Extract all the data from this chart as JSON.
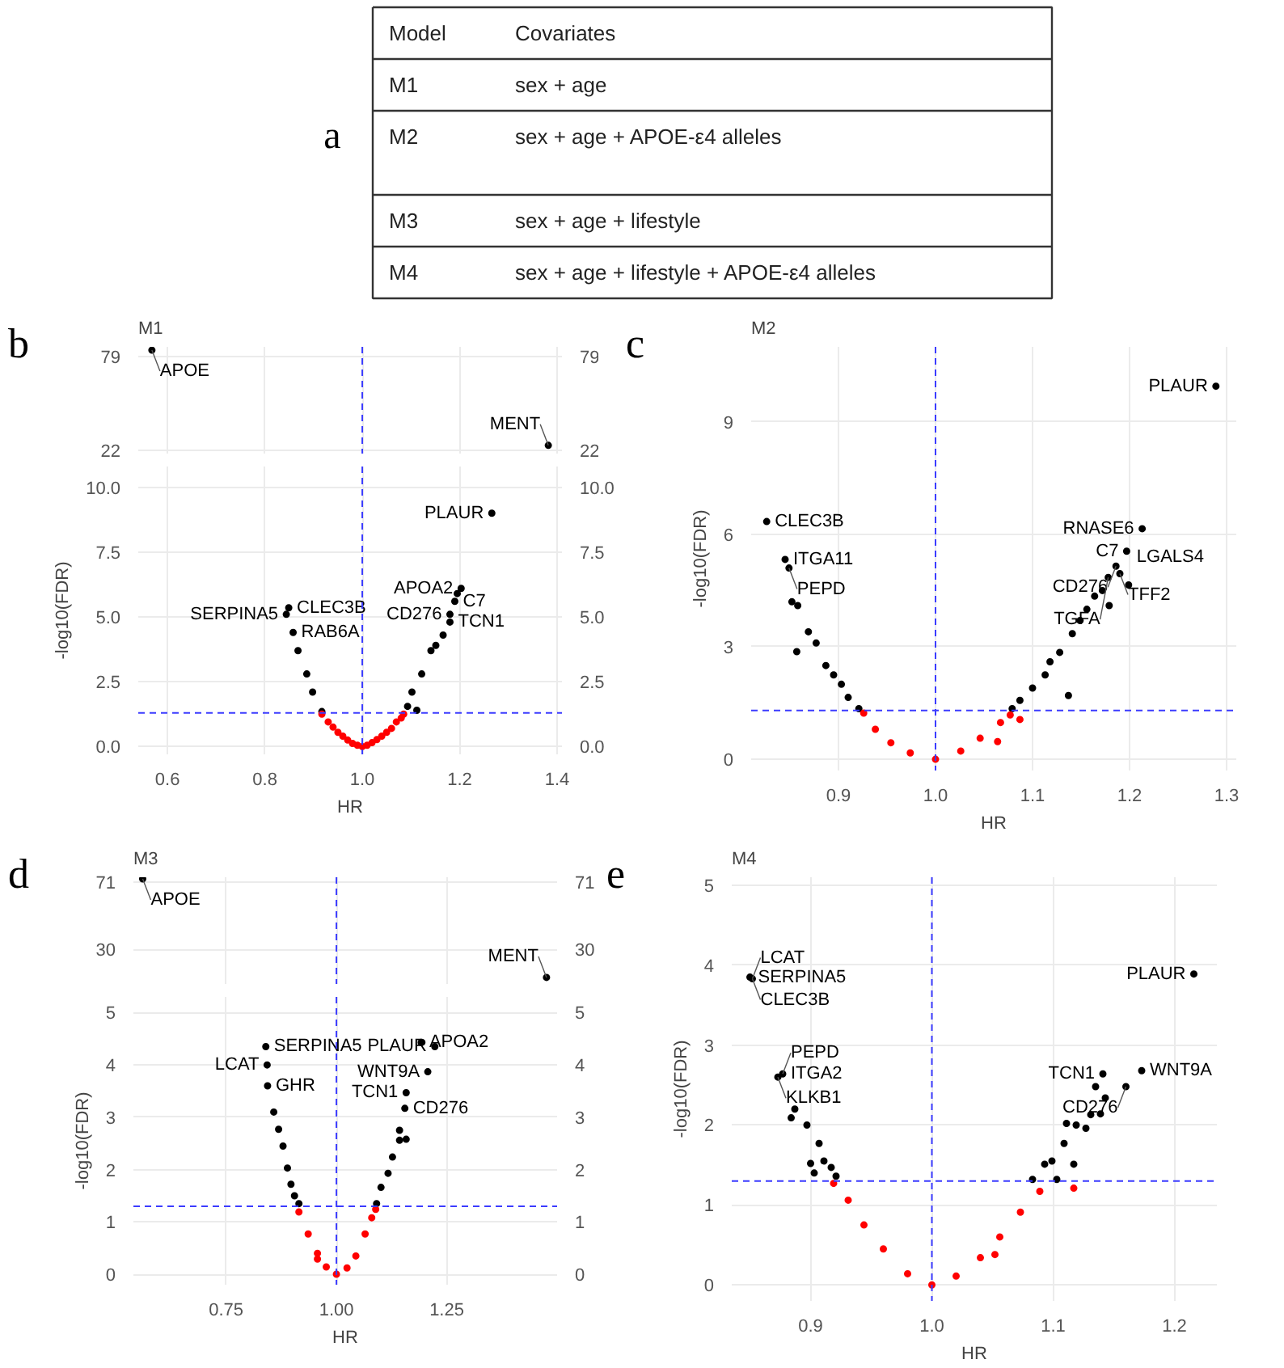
{
  "chart_data": [
    {
      "type": "other",
      "annotations": [
        "a",
        "Model",
        "Covariates",
        "M1",
        "sex + age",
        "M2",
        "sex + age + APOE-ε4 alleles",
        "M3",
        "sex + age + lifestyle",
        "M4",
        "sex + age + lifestyle + APOE-ε4 alleles"
      ]
    },
    {
      "type": "scatter",
      "title": "M1",
      "grid": true,
      "marker": "circle",
      "tick_labels": "y",
      "xlim": [
        0.54,
        1.41
      ],
      "xticks": [
        0.6,
        0.8,
        1.0,
        1.2,
        1.4
      ],
      "ylim": [
        20,
        85
      ],
      "yticks": [
        22,
        79
      ],
      "y2lim": [
        20,
        85
      ],
      "y2ticks": [
        22,
        79
      ],
      "series": [
        {
          "color": "#000000",
          "x": [
            0.568,
            1.382
          ],
          "values": [
            83,
            25
          ]
        }
      ],
      "ref_lines": [
        {
          "axis": "x",
          "value": 1,
          "color": "#3b3bff",
          "line_style": "dashed"
        }
      ],
      "annotations": [
        "b",
        {
          "text": "APOE",
          "x": 0.568,
          "y": 83
        },
        {
          "text": "MENT",
          "x": 1.382,
          "y": 25
        }
      ]
    },
    {
      "type": "scatter",
      "xlabel": "HR",
      "ylabel": "-log10(FDR)",
      "grid": true,
      "marker": "circle",
      "xlim": [
        0.54,
        1.41
      ],
      "xticks": [
        0.6,
        0.8,
        {
          "value": 1.0,
          "label": "1.0"
        },
        1.2,
        1.4
      ],
      "ylim": [
        -0.3,
        10.8
      ],
      "yticks": [
        {
          "value": 0,
          "label": "0.0"
        },
        {
          "value": 2.5,
          "label": "2.5"
        },
        {
          "value": 5,
          "label": "5.0"
        },
        {
          "value": 7.5,
          "label": "7.5"
        },
        {
          "value": 10,
          "label": "10.0"
        }
      ],
      "y2lim": [
        -0.3,
        10.8
      ],
      "y2ticks": [
        {
          "value": 0,
          "label": "0.0"
        },
        {
          "value": 2.5,
          "label": "2.5"
        },
        {
          "value": 5,
          "label": "5.0"
        },
        {
          "value": 7.5,
          "label": "7.5"
        },
        {
          "value": 10,
          "label": "10.0"
        }
      ],
      "series": [
        {
          "color": "#000000",
          "x": [
            0.917,
            0.898,
            0.886,
            0.868,
            0.858,
            0.844,
            0.849,
            1.093,
            1.102,
            1.112,
            1.122,
            1.141,
            1.151,
            1.166,
            1.18,
            1.18,
            1.19,
            1.195,
            1.203,
            1.266
          ],
          "values": [
            1.35,
            2.1,
            2.8,
            3.7,
            4.4,
            5.1,
            5.35,
            1.55,
            2.1,
            1.4,
            2.8,
            3.7,
            3.9,
            4.3,
            5.1,
            4.8,
            5.6,
            5.9,
            6.1,
            9.0
          ]
        },
        {
          "color": "#ff0000",
          "x": [
            0.917,
            0.93,
            0.94,
            0.95,
            0.96,
            0.97,
            0.98,
            0.99,
            1.0,
            1.01,
            1.02,
            1.03,
            1.04,
            1.05,
            1.06,
            1.07,
            1.08,
            1.085
          ],
          "values": [
            1.25,
            0.95,
            0.75,
            0.55,
            0.4,
            0.25,
            0.12,
            0.05,
            0,
            0.05,
            0.15,
            0.27,
            0.4,
            0.55,
            0.7,
            0.95,
            1.1,
            1.25
          ]
        }
      ],
      "ref_lines": [
        {
          "axis": "x",
          "value": 1,
          "color": "#3b3bff",
          "line_style": "dashed"
        },
        {
          "axis": "y",
          "value": 1.3,
          "color": "#3b3bff",
          "line_style": "dashed"
        }
      ],
      "annotations": [
        {
          "text": "PLAUR",
          "x": 1.266,
          "y": 9.0
        },
        {
          "text": "APOA2",
          "x": 1.203,
          "y": 6.1
        },
        {
          "text": "C7",
          "x": 1.19,
          "y": 5.6
        },
        {
          "text": "CD276",
          "x": 1.18,
          "y": 5.1
        },
        {
          "text": "TCN1",
          "x": 1.18,
          "y": 4.8
        },
        {
          "text": "CLEC3B",
          "x": 0.849,
          "y": 5.35
        },
        {
          "text": "SERPINA5",
          "x": 0.844,
          "y": 5.1
        },
        {
          "text": "RAB6A",
          "x": 0.858,
          "y": 4.4
        }
      ]
    },
    {
      "type": "scatter",
      "title": "M2",
      "xlabel": "HR",
      "ylabel": "-log10(FDR)",
      "grid": true,
      "marker": "circle",
      "xlim": [
        0.81,
        1.31
      ],
      "xticks": [
        0.9,
        {
          "value": 1.0,
          "label": "1.0"
        },
        1.1,
        1.2,
        1.3
      ],
      "ylim": [
        -0.3,
        11
      ],
      "yticks": [
        0,
        3,
        6,
        9
      ],
      "series": [
        {
          "color": "#000000",
          "x": [
            1.289,
            0.826,
            0.845,
            0.849,
            0.852,
            0.858,
            0.857,
            0.869,
            0.877,
            0.887,
            0.895,
            0.903,
            0.91,
            0.921,
            1.079,
            1.087,
            1.1,
            1.113,
            1.118,
            1.128,
            1.137,
            1.141,
            1.149,
            1.156,
            1.164,
            1.172,
            1.179,
            1.178,
            1.186,
            1.19,
            1.197,
            1.199,
            1.213
          ],
          "values": [
            9.95,
            6.34,
            5.33,
            5.1,
            4.2,
            4.1,
            2.87,
            3.4,
            3.1,
            2.5,
            2.25,
            2.0,
            1.65,
            1.35,
            1.35,
            1.57,
            1.9,
            2.25,
            2.6,
            2.85,
            1.7,
            3.35,
            3.7,
            4.0,
            4.35,
            4.5,
            4.1,
            4.85,
            5.15,
            4.95,
            5.55,
            4.65,
            6.15
          ]
        },
        {
          "color": "#ff0000",
          "x": [
            0.926,
            0.938,
            0.954,
            0.974,
            1.0,
            1.026,
            1.046,
            1.064,
            1.067,
            1.077,
            1.087
          ],
          "values": [
            1.23,
            0.8,
            0.44,
            0.17,
            0,
            0.22,
            0.56,
            0.47,
            0.98,
            1.18,
            1.06
          ]
        }
      ],
      "ref_lines": [
        {
          "axis": "x",
          "value": 1,
          "color": "#3b3bff",
          "line_style": "dashed"
        },
        {
          "axis": "y",
          "value": 1.3,
          "color": "#3b3bff",
          "line_style": "dashed"
        }
      ],
      "annotations": [
        "c",
        {
          "text": "PLAUR",
          "x": 1.289,
          "y": 9.95
        },
        {
          "text": "CLEC3B",
          "x": 0.826,
          "y": 6.34
        },
        {
          "text": "ITGA11",
          "x": 0.845,
          "y": 5.33
        },
        {
          "text": "PEPD",
          "x": 0.849,
          "y": 5.1
        },
        {
          "text": "RNASE6",
          "x": 1.213,
          "y": 6.15
        },
        {
          "text": "C7",
          "x": 1.197,
          "y": 5.55
        },
        {
          "text": "LGALS4",
          "x": 1.199,
          "y": 5.4
        },
        {
          "text": "CD276",
          "x": 1.186,
          "y": 5.15
        },
        {
          "text": "TFF2",
          "x": 1.19,
          "y": 4.95
        },
        {
          "text": "TGFA",
          "x": 1.178,
          "y": 4.85
        }
      ]
    },
    {
      "type": "scatter",
      "title": "M3",
      "grid": true,
      "marker": "circle",
      "tick_labels": "y",
      "xlim": [
        0.54,
        1.5
      ],
      "xticks": [
        0.75,
        1.0,
        1.25
      ],
      "ylim": [
        9,
        74
      ],
      "yticks": [
        30,
        71
      ],
      "y2lim": [
        9,
        74
      ],
      "y2ticks": [
        30,
        71
      ],
      "series": [
        {
          "color": "#000000",
          "x": [
            0.561,
            1.476
          ],
          "values": [
            73,
            13
          ]
        }
      ],
      "ref_lines": [
        {
          "axis": "x",
          "value": 1,
          "color": "#3b3bff",
          "line_style": "dashed"
        }
      ],
      "annotations": [
        "d",
        {
          "text": "APOE",
          "x": 0.561,
          "y": 73
        },
        {
          "text": "MENT",
          "x": 1.476,
          "y": 13
        }
      ]
    },
    {
      "type": "scatter",
      "xlabel": "HR",
      "ylabel": "-log10(FDR)",
      "grid": true,
      "marker": "circle",
      "xlim": [
        0.54,
        1.5
      ],
      "xticks": [
        {
          "value": 0.75,
          "label": "0.75"
        },
        {
          "value": 1.0,
          "label": "1.00"
        },
        {
          "value": 1.25,
          "label": "1.25"
        }
      ],
      "ylim": [
        -0.2,
        5.3
      ],
      "yticks": [
        0,
        1,
        2,
        3,
        4,
        5
      ],
      "y2lim": [
        -0.2,
        5.3
      ],
      "y2ticks": [
        0,
        1,
        2,
        3,
        4,
        5
      ],
      "series": [
        {
          "color": "#000000",
          "x": [
            0.84,
            0.843,
            0.844,
            0.858,
            0.869,
            0.879,
            0.889,
            0.897,
            0.905,
            0.915,
            1.091,
            1.101,
            1.117,
            1.127,
            1.143,
            1.143,
            1.158,
            1.155,
            1.158,
            1.207,
            1.192,
            1.223
          ],
          "values": [
            4.35,
            4.0,
            3.6,
            3.1,
            2.77,
            2.45,
            2.03,
            1.72,
            1.5,
            1.35,
            1.35,
            1.66,
            1.93,
            2.24,
            2.56,
            2.75,
            2.58,
            3.17,
            3.47,
            3.87,
            4.43,
            4.35
          ]
        },
        {
          "color": "#ff0000",
          "x": [
            0.915,
            0.936,
            0.957,
            0.957,
            0.977,
            1.0,
            1.024,
            1.044,
            1.065,
            1.08,
            1.089
          ],
          "values": [
            1.19,
            0.77,
            0.4,
            0.29,
            0.14,
            0,
            0.12,
            0.35,
            0.77,
            1.08,
            1.24
          ]
        }
      ],
      "ref_lines": [
        {
          "axis": "x",
          "value": 1,
          "color": "#3b3bff",
          "line_style": "dashed"
        },
        {
          "axis": "y",
          "value": 1.3,
          "color": "#3b3bff",
          "line_style": "dashed"
        }
      ],
      "annotations": [
        {
          "text": "SERPINA5",
          "x": 0.84,
          "y": 4.35
        },
        {
          "text": "LCAT",
          "x": 0.843,
          "y": 4.0
        },
        {
          "text": "GHR",
          "x": 0.844,
          "y": 3.6
        },
        {
          "text": "APOA2",
          "x": 1.192,
          "y": 4.43
        },
        {
          "text": "PLAUR",
          "x": 1.223,
          "y": 4.35
        },
        {
          "text": "WNT9A",
          "x": 1.207,
          "y": 3.87
        },
        {
          "text": "TCN1",
          "x": 1.158,
          "y": 3.47
        },
        {
          "text": "CD276",
          "x": 1.155,
          "y": 3.17
        }
      ]
    },
    {
      "type": "scatter",
      "title": "M4",
      "xlabel": "HR",
      "ylabel": "-log10(FDR)",
      "grid": true,
      "marker": "circle",
      "xlim": [
        0.835,
        1.235
      ],
      "xticks": [
        0.9,
        {
          "value": 1.0,
          "label": "1.0"
        },
        1.1,
        1.2
      ],
      "ylim": [
        -0.2,
        5.1
      ],
      "yticks": [
        0,
        1,
        2,
        3,
        4,
        5
      ],
      "series": [
        {
          "color": "#000000",
          "x": [
            0.85,
            0.852,
            0.877,
            0.873,
            0.884,
            0.887,
            0.897,
            0.9,
            0.903,
            0.907,
            0.911,
            0.917,
            0.921,
            1.083,
            1.093,
            1.099,
            1.103,
            1.109,
            1.111,
            1.117,
            1.119,
            1.127,
            1.131,
            1.139,
            1.135,
            1.141,
            1.143,
            1.16,
            1.173,
            1.216
          ],
          "values": [
            3.85,
            3.83,
            2.64,
            2.6,
            2.09,
            2.2,
            2.0,
            1.52,
            1.4,
            1.77,
            1.55,
            1.47,
            1.36,
            1.32,
            1.51,
            1.55,
            1.32,
            1.77,
            2.02,
            1.51,
            2.0,
            1.96,
            2.13,
            2.14,
            2.48,
            2.64,
            2.34,
            2.48,
            2.68,
            3.89
          ]
        },
        {
          "color": "#ff0000",
          "x": [
            0.919,
            0.931,
            0.944,
            0.96,
            0.98,
            1.0,
            1.02,
            1.04,
            1.052,
            1.056,
            1.073,
            1.089,
            1.117
          ],
          "values": [
            1.27,
            1.06,
            0.75,
            0.45,
            0.14,
            0,
            0.11,
            0.34,
            0.38,
            0.6,
            0.91,
            1.17,
            1.21
          ]
        }
      ],
      "ref_lines": [
        {
          "axis": "x",
          "value": 1,
          "color": "#3b3bff",
          "line_style": "dashed"
        },
        {
          "axis": "y",
          "value": 1.3,
          "color": "#3b3bff",
          "line_style": "dashed"
        }
      ],
      "annotations": [
        "e",
        {
          "text": "SERPINA5",
          "x": 0.85,
          "y": 3.85
        },
        {
          "text": "LCAT",
          "x": 0.852,
          "y": 3.83
        },
        {
          "text": "CLEC3B",
          "x": 0.852,
          "y": 3.83
        },
        {
          "text": "ITGA2",
          "x": 0.877,
          "y": 2.64
        },
        {
          "text": "KLKB1",
          "x": 0.873,
          "y": 2.6
        },
        {
          "text": "PEPD",
          "x": 0.877,
          "y": 2.64
        },
        {
          "text": "PLAUR",
          "x": 1.216,
          "y": 3.89
        },
        {
          "text": "TCN1",
          "x": 1.141,
          "y": 2.64
        },
        {
          "text": "WNT9A",
          "x": 1.173,
          "y": 2.68
        },
        {
          "text": "CD276",
          "x": 1.16,
          "y": 2.48
        }
      ]
    }
  ]
}
